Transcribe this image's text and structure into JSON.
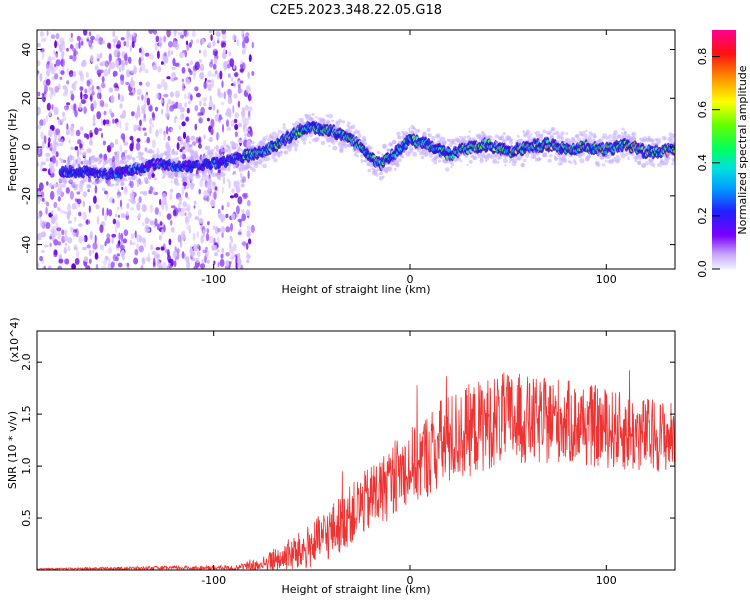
{
  "title": "C2E5.2023.348.22.05.G18",
  "chart_data": [
    {
      "type": "heatmap",
      "xlabel": "Height of straight line (km)",
      "ylabel": "Frequency (Hz)",
      "xlim": [
        -190,
        135
      ],
      "ylim": [
        -50,
        48
      ],
      "x_ticks": [
        -100,
        0,
        100
      ],
      "y_ticks": [
        -40,
        -20,
        0,
        20,
        40
      ],
      "colorbar": {
        "label": "Normalized spectral amplitude",
        "ticks": [
          0.0,
          0.2,
          0.4,
          0.6,
          0.8
        ],
        "range": [
          0,
          0.9
        ]
      },
      "ridge": {
        "x": [
          -170,
          -150,
          -130,
          -110,
          -95,
          -80,
          -70,
          -60,
          -52,
          -45,
          -38,
          -30,
          -22,
          -15,
          -10,
          -5,
          0,
          5,
          10,
          20,
          30,
          40,
          50,
          60,
          70,
          80,
          90,
          100,
          110,
          120,
          135
        ],
        "y": [
          -10,
          -11,
          -7,
          -8,
          -6,
          -3,
          0,
          5,
          8,
          7,
          6,
          3,
          -2,
          -7,
          -4,
          -1,
          3,
          2,
          1,
          -3,
          0,
          1,
          -2,
          0,
          1,
          -1,
          0,
          -1,
          1,
          -2,
          -1
        ]
      },
      "noise_region_x": [
        -190,
        -80
      ]
    },
    {
      "type": "line",
      "xlabel": "Height of straight line (km)",
      "ylabel": "SNR (10 * v/v)",
      "y_multiplier": "(x10^4)",
      "xlim": [
        -190,
        135
      ],
      "ylim": [
        0,
        2.3
      ],
      "x_ticks": [
        -100,
        0,
        100
      ],
      "y_ticks": [
        0.5,
        1.0,
        1.5,
        2.0
      ],
      "series": [
        {
          "color": "#ee3333",
          "envelope_x": [
            -190,
            -120,
            -90,
            -75,
            -65,
            -55,
            -45,
            -35,
            -25,
            -15,
            -5,
            5,
            15,
            25,
            35,
            45,
            55,
            65,
            75,
            85,
            95,
            105,
            115,
            125,
            135
          ],
          "envelope_mean": [
            0.01,
            0.02,
            0.02,
            0.05,
            0.12,
            0.18,
            0.3,
            0.45,
            0.62,
            0.75,
            0.95,
            1.05,
            1.2,
            1.3,
            1.38,
            1.45,
            1.45,
            1.42,
            1.45,
            1.4,
            1.38,
            1.35,
            1.3,
            1.3,
            1.28
          ],
          "envelope_amp": [
            0.005,
            0.02,
            0.02,
            0.08,
            0.15,
            0.2,
            0.25,
            0.28,
            0.3,
            0.35,
            0.35,
            0.4,
            0.45,
            0.45,
            0.45,
            0.45,
            0.45,
            0.42,
            0.42,
            0.4,
            0.4,
            0.38,
            0.38,
            0.35,
            0.35
          ]
        }
      ]
    }
  ]
}
